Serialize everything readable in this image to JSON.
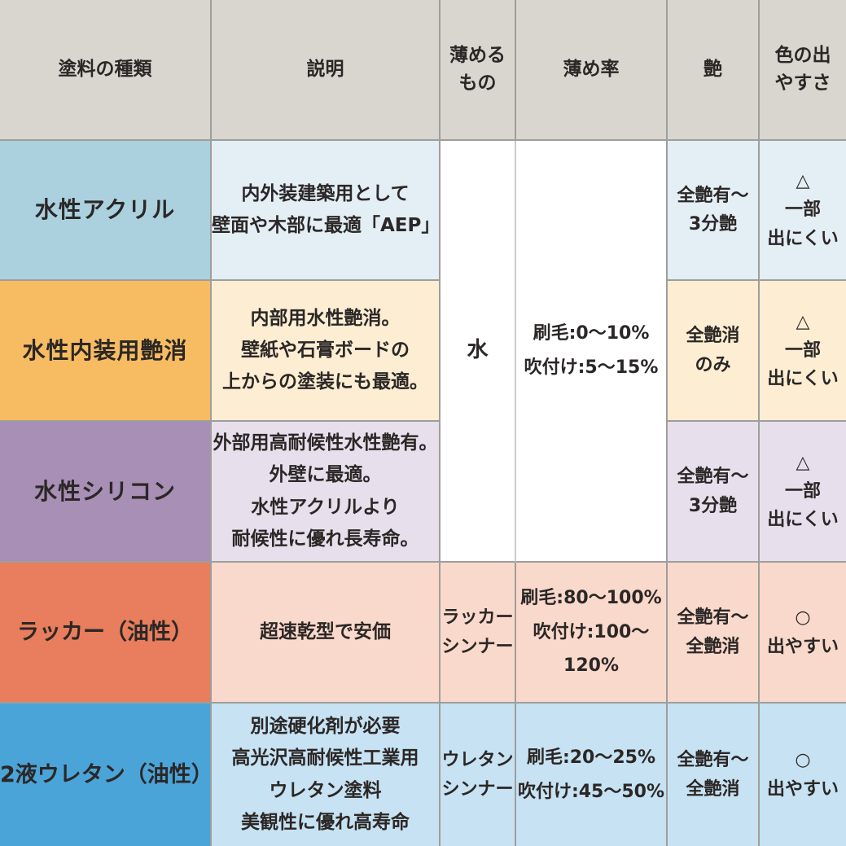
{
  "table": {
    "headers": {
      "paint_type": "塗料の種類",
      "description": "説明",
      "thinner": "薄める\nもの",
      "dilution_rate": "薄め率",
      "gloss": "艶",
      "color_ease": "色の出\nやすさ"
    },
    "merged_water_group": {
      "thinner": "水",
      "dilution_rate": "刷毛:0〜10%\n吹付け:5〜15%"
    },
    "rows": [
      {
        "type": "水性アクリル",
        "description": "内外装建築用として\n壁面や木部に最適「AEP」",
        "gloss": "全艶有〜\n3分艶",
        "color_ease": "△\n一部\n出にくい",
        "colors": {
          "label_bg": "#abd1df",
          "tint_bg": "#e3eef5"
        }
      },
      {
        "type": "水性内装用艶消",
        "description": "内部用水性艶消。\n壁紙や石膏ボードの\n上からの塗装にも最適。",
        "gloss": "全艶消\nのみ",
        "color_ease": "△\n一部\n出にくい",
        "colors": {
          "label_bg": "#f7bc62",
          "tint_bg": "#fdeed3"
        }
      },
      {
        "type": "水性シリコン",
        "description": "外部用高耐候性水性艶有。\n外壁に最適。\n水性アクリルより\n耐候性に優れ長寿命。",
        "gloss": "全艶有〜\n3分艶",
        "color_ease": "△\n一部\n出にくい",
        "colors": {
          "label_bg": "#a78fb5",
          "tint_bg": "#e8dfec"
        }
      },
      {
        "type": "ラッカー（油性）",
        "description": "超速乾型で安価",
        "thinner": "ラッカー\nシンナー",
        "dilution_rate": "刷毛:80〜100%\n吹付け:100〜120%",
        "gloss": "全艶有〜\n全艶消",
        "color_ease": "○\n出やすい",
        "colors": {
          "label_bg": "#e87e5d",
          "tint_bg": "#f9d9cb"
        }
      },
      {
        "type": "2液ウレタン（油性）",
        "description": "別途硬化剤が必要\n高光沢高耐候性工業用\nウレタン塗料\n美観性に優れ高寿命",
        "thinner": "ウレタン\nシンナー",
        "dilution_rate": "刷毛:20〜25%\n吹付け:45〜50%",
        "gloss": "全艶有〜\n全艶消",
        "color_ease": "○\n出やすい",
        "colors": {
          "label_bg": "#4ba4d8",
          "tint_bg": "#c7e2f2"
        }
      }
    ],
    "ui_colors": {
      "header_bg": "#d9d6d0",
      "border": "#9e9e9b",
      "text": "#2b2726",
      "merged_bg": "#ffffff"
    }
  }
}
